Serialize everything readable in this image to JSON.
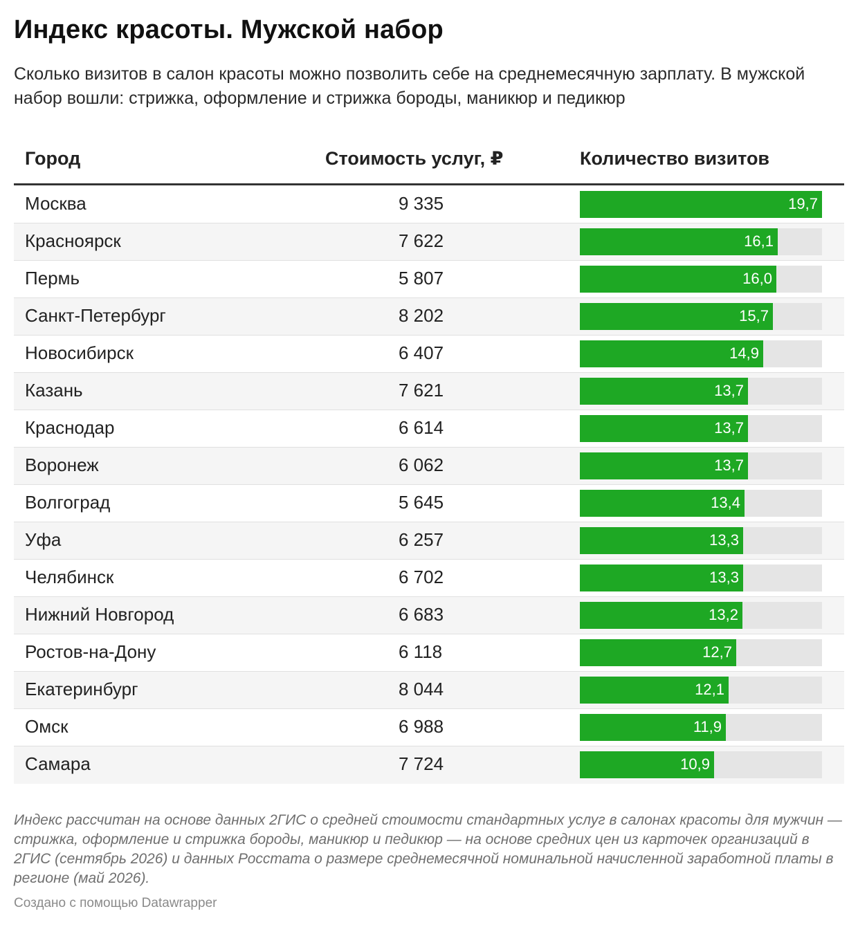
{
  "title": "Индекс красоты. Мужской набор",
  "subtitle": "Сколько визитов в салон красоты можно позволить себе на среднемесячную зарплату. В мужской набор вошли: стрижка, оформление и стрижка бороды, маникюр и педикюр",
  "headers": {
    "city": "Город",
    "cost": "Стоимость услуг, ₽",
    "visits": "Количество визитов"
  },
  "colors": {
    "bar": "#1ea824",
    "track": "#e5e5e5"
  },
  "chart_data": {
    "type": "table",
    "columns": [
      "Город",
      "Стоимость услуг, ₽",
      "Количество визитов"
    ],
    "bar_max": 19.7,
    "rows": [
      {
        "city": "Москва",
        "cost": "9 335",
        "visits": 19.7,
        "visits_label": "19,7"
      },
      {
        "city": "Красноярск",
        "cost": "7 622",
        "visits": 16.1,
        "visits_label": "16,1"
      },
      {
        "city": "Пермь",
        "cost": "5 807",
        "visits": 16.0,
        "visits_label": "16,0"
      },
      {
        "city": "Санкт-Петербург",
        "cost": "8 202",
        "visits": 15.7,
        "visits_label": "15,7"
      },
      {
        "city": "Новосибирск",
        "cost": "6 407",
        "visits": 14.9,
        "visits_label": "14,9"
      },
      {
        "city": "Казань",
        "cost": "7 621",
        "visits": 13.7,
        "visits_label": "13,7"
      },
      {
        "city": "Краснодар",
        "cost": "6 614",
        "visits": 13.7,
        "visits_label": "13,7"
      },
      {
        "city": "Воронеж",
        "cost": "6 062",
        "visits": 13.7,
        "visits_label": "13,7"
      },
      {
        "city": "Волгоград",
        "cost": "5 645",
        "visits": 13.4,
        "visits_label": "13,4"
      },
      {
        "city": "Уфа",
        "cost": "6 257",
        "visits": 13.3,
        "visits_label": "13,3"
      },
      {
        "city": "Челябинск",
        "cost": "6 702",
        "visits": 13.3,
        "visits_label": "13,3"
      },
      {
        "city": "Нижний Новгород",
        "cost": "6 683",
        "visits": 13.2,
        "visits_label": "13,2"
      },
      {
        "city": "Ростов-на-Дону",
        "cost": "6 118",
        "visits": 12.7,
        "visits_label": "12,7"
      },
      {
        "city": "Екатеринбург",
        "cost": "8 044",
        "visits": 12.1,
        "visits_label": "12,1"
      },
      {
        "city": "Омск",
        "cost": "6 988",
        "visits": 11.9,
        "visits_label": "11,9"
      },
      {
        "city": "Самара",
        "cost": "7 724",
        "visits": 10.9,
        "visits_label": "10,9"
      }
    ]
  },
  "notes": "Индекс рассчитан на основе данных 2ГИС о средней стоимости стандартных услуг в салонах красоты для мужчин — стрижка, оформление и стрижка бороды, маникюр и педикюр — на основе средних цен из карточек организаций в 2ГИС (сентябрь 2026) и данных Росстата о размере среднемесячной номинальной начисленной заработной платы в регионе (май 2026).",
  "credit": "Создано с помощью Datawrapper"
}
